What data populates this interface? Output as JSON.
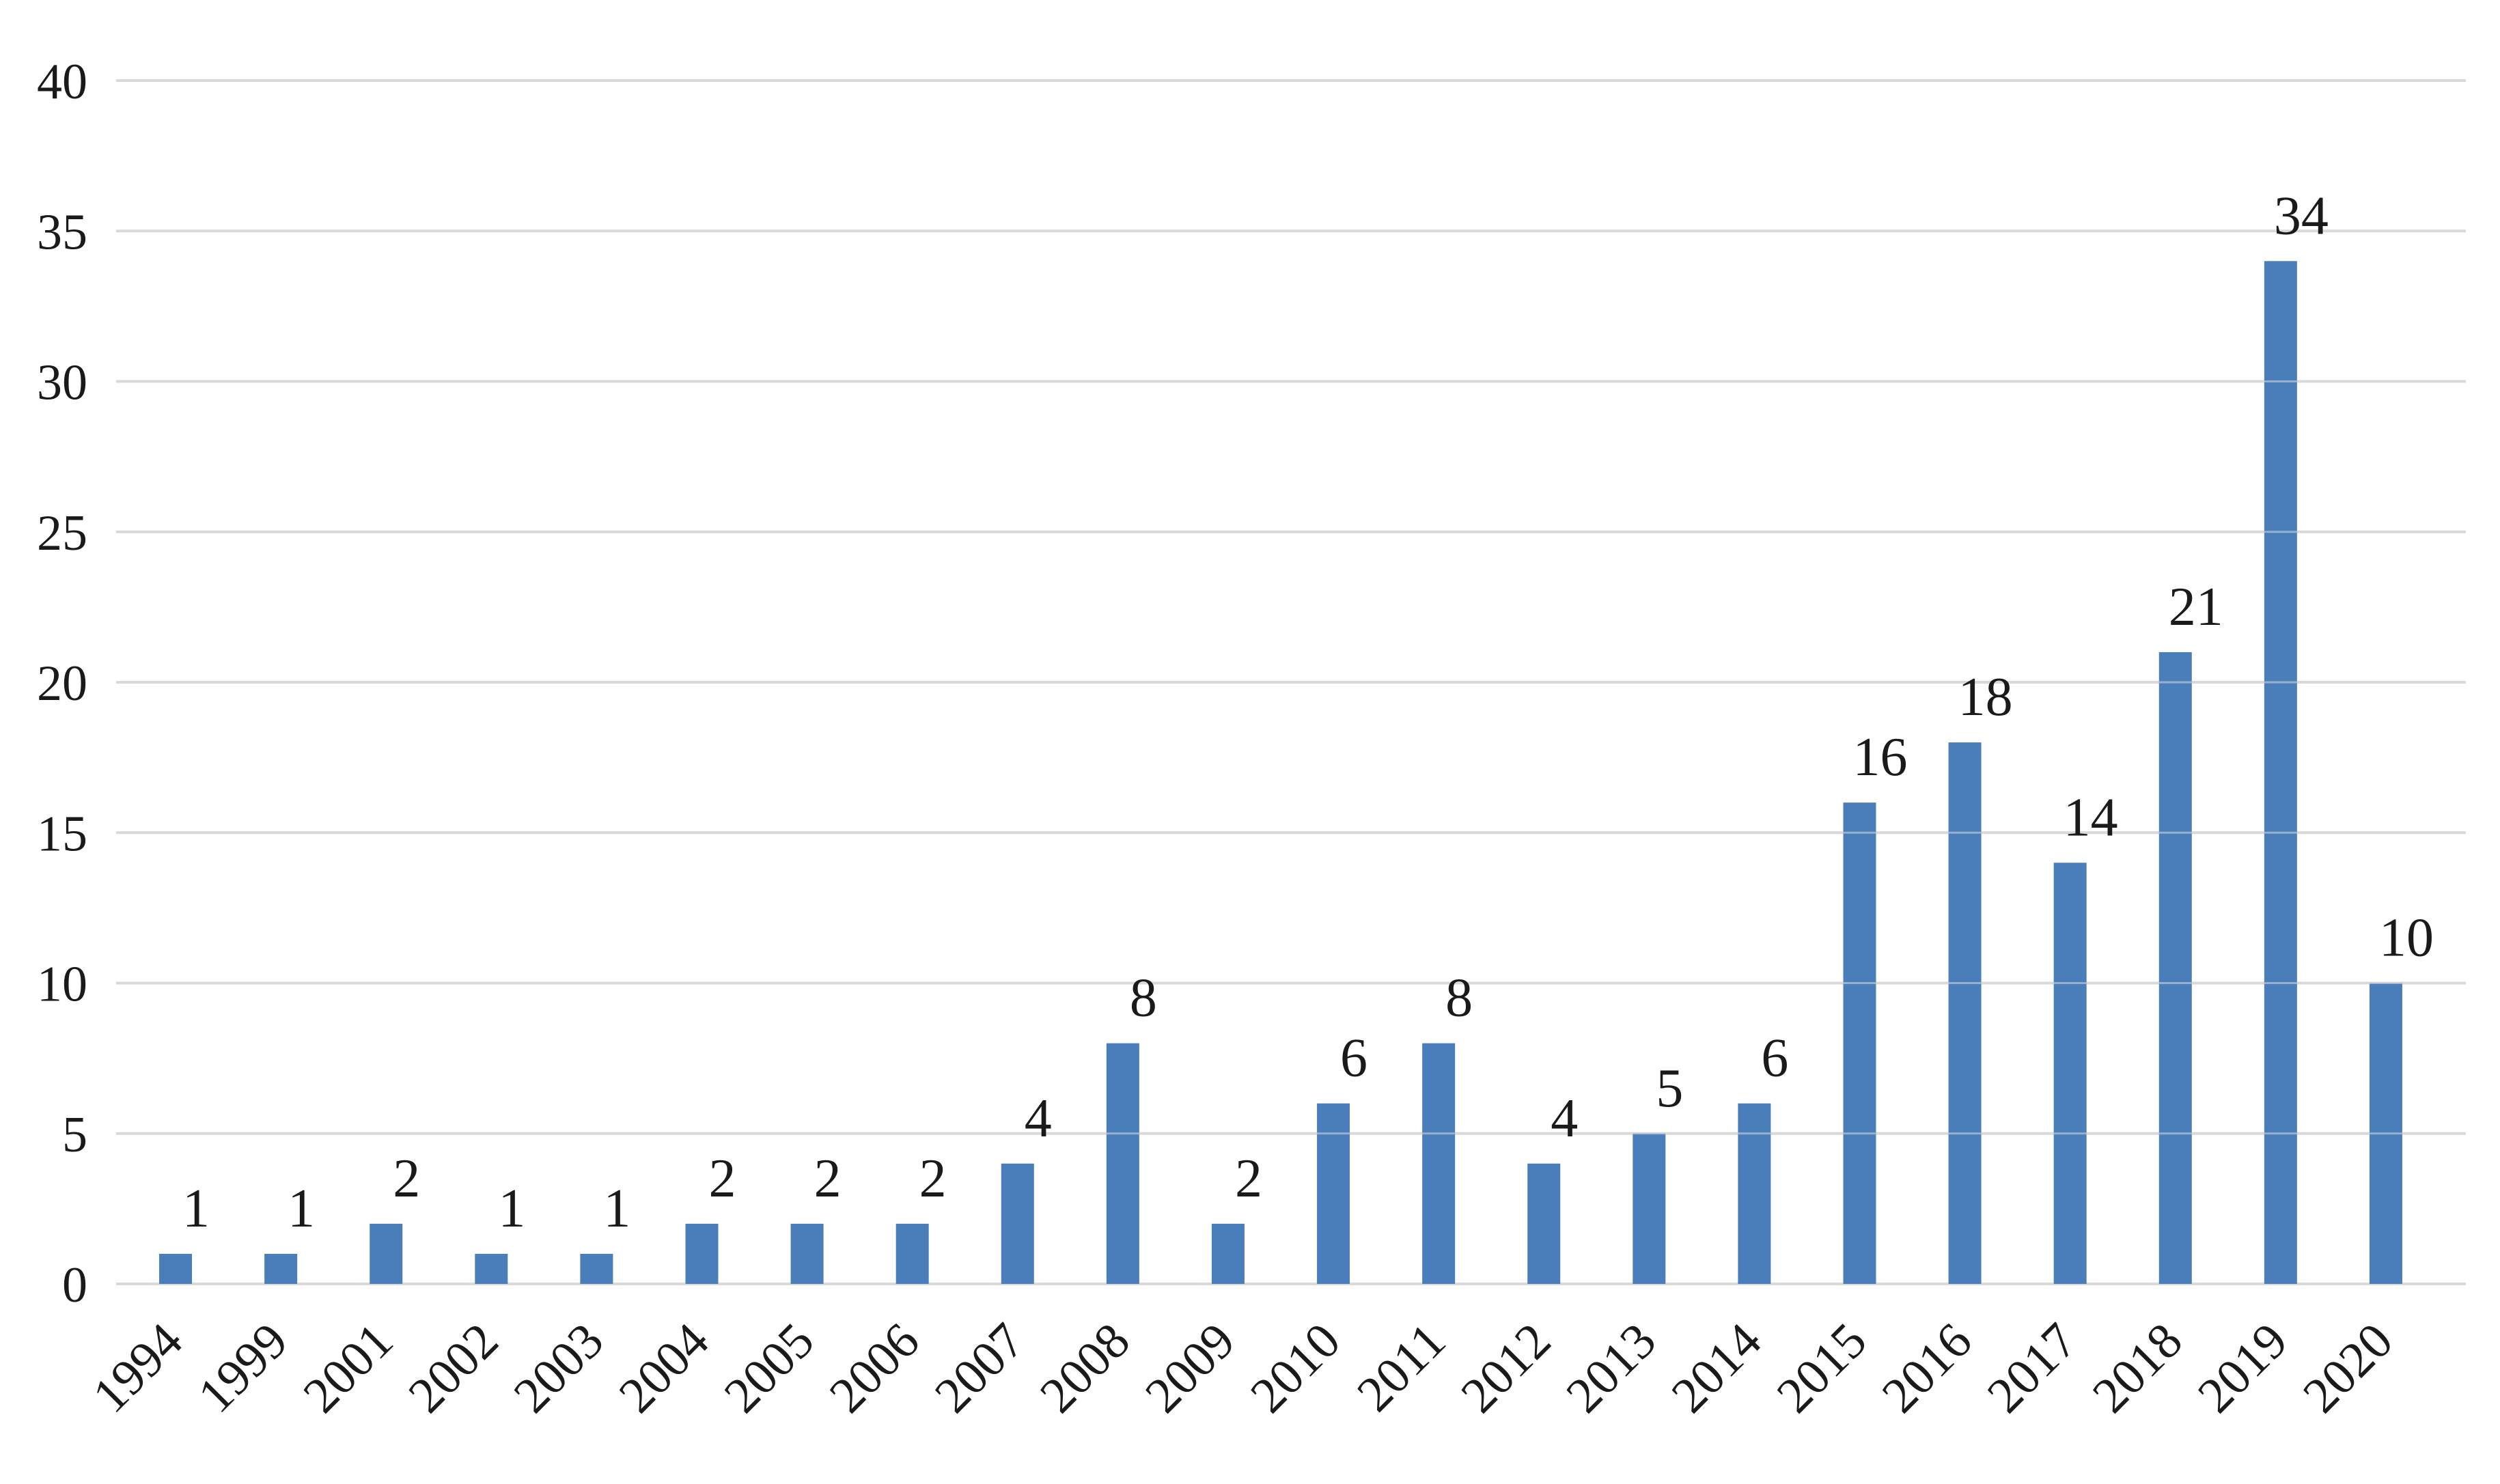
{
  "chart_data": {
    "type": "bar",
    "title": "",
    "xlabel": "",
    "ylabel": "",
    "categories": [
      "1994",
      "1999",
      "2001",
      "2002",
      "2003",
      "2004",
      "2005",
      "2006",
      "2007",
      "2008",
      "2009",
      "2010",
      "2011",
      "2012",
      "2013",
      "2014",
      "2015",
      "2016",
      "2017",
      "2018",
      "2019",
      "2020"
    ],
    "values": [
      1,
      1,
      2,
      1,
      1,
      2,
      2,
      2,
      4,
      8,
      2,
      6,
      8,
      4,
      5,
      6,
      16,
      18,
      14,
      21,
      34,
      10
    ],
    "ylim": [
      0,
      40
    ],
    "yticks": [
      0,
      5,
      10,
      15,
      20,
      25,
      30,
      35,
      40
    ],
    "grid": true,
    "legend": "none",
    "bar_color": "#4a7ebb",
    "grid_color": "#d9d9d9",
    "data_labels": true,
    "x_tick_rotation": "-45deg"
  }
}
